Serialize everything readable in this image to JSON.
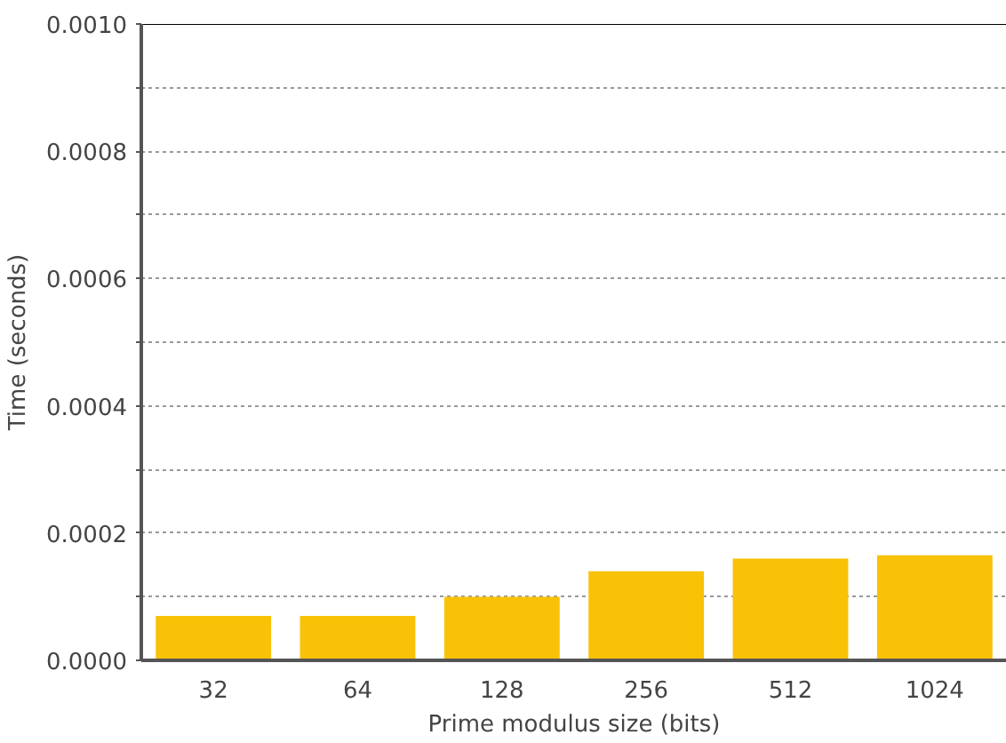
{
  "chart_data": {
    "type": "bar",
    "xlabel": "Prime modulus size (bits)",
    "ylabel": "Time (seconds)",
    "categories": [
      "32",
      "64",
      "128",
      "256",
      "512",
      "1024"
    ],
    "values": [
      7e-05,
      7e-05,
      0.0001,
      0.00014,
      0.00016,
      0.000165
    ],
    "color": "#f8c207",
    "ylim": [
      0,
      0.001
    ],
    "yticks": [
      "0.0000",
      {
        "value": 0.0001,
        "label": null
      },
      {
        "value": 0.0002,
        "label": "0.0002"
      },
      {
        "value": 0.0003,
        "label": null
      },
      {
        "value": 0.0004,
        "label": "0.0004"
      },
      {
        "value": 0.0005,
        "label": null
      },
      {
        "value": 0.0006,
        "label": "0.0006"
      },
      {
        "value": 0.0007,
        "label": null
      },
      {
        "value": 0.0008,
        "label": "0.0008"
      },
      {
        "value": 0.0009,
        "label": null
      },
      {
        "value": 0.001,
        "label": "0.0010"
      }
    ],
    "grid": "y"
  }
}
